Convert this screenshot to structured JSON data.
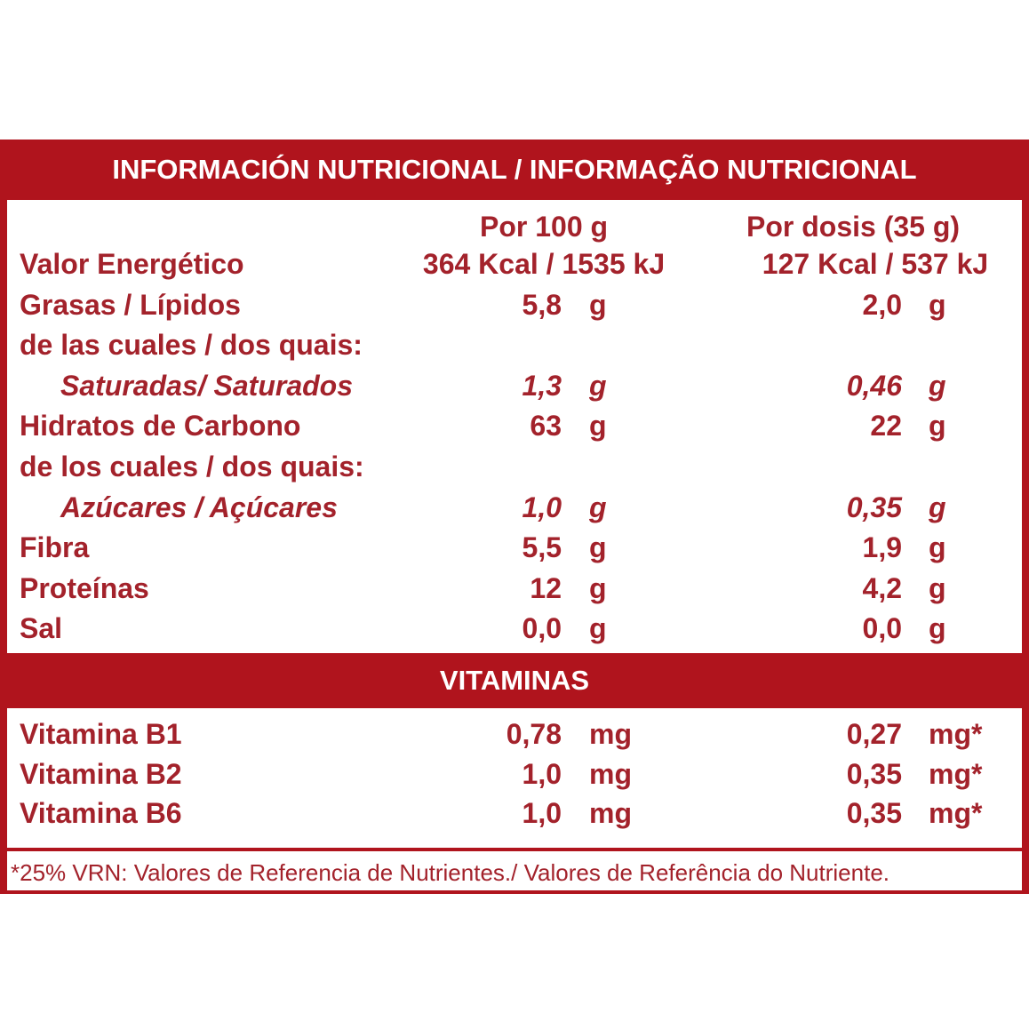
{
  "header": {
    "title": "INFORMACIÓN NUTRICIONAL / INFORMAÇÃO NUTRICIONAL"
  },
  "table": {
    "columns": [
      "Por 100 g",
      "Por dosis (35 g)"
    ],
    "rows": [
      {
        "label": "Valor Energético",
        "per_100g": {
          "amount": "364 Kcal / 1535 kJ"
        },
        "per_dose": {
          "amount": "127 Kcal / 537 kJ"
        }
      },
      {
        "label": "Grasas / Lípidos",
        "per_100g": {
          "amount": "5,8",
          "unit": "g"
        },
        "per_dose": {
          "amount": "2,0",
          "unit": "g"
        }
      },
      {
        "label": "de las cuales / dos quais:"
      },
      {
        "label": "Saturadas/ Saturados",
        "italic": true,
        "per_100g": {
          "amount": "1,3",
          "unit": "g"
        },
        "per_dose": {
          "amount": "0,46",
          "unit": "g"
        }
      },
      {
        "label": "Hidratos de Carbono",
        "per_100g": {
          "amount": "63",
          "unit": "g"
        },
        "per_dose": {
          "amount": "22",
          "unit": "g"
        }
      },
      {
        "label": "de los cuales / dos quais:"
      },
      {
        "label": "Azúcares / Açúcares",
        "italic": true,
        "per_100g": {
          "amount": "1,0",
          "unit": "g"
        },
        "per_dose": {
          "amount": "0,35",
          "unit": "g"
        }
      },
      {
        "label": "Fibra",
        "per_100g": {
          "amount": "5,5",
          "unit": "g"
        },
        "per_dose": {
          "amount": "1,9",
          "unit": "g"
        }
      },
      {
        "label": "Proteínas",
        "per_100g": {
          "amount": "12",
          "unit": "g"
        },
        "per_dose": {
          "amount": "4,2",
          "unit": "g"
        }
      },
      {
        "label": "Sal",
        "per_100g": {
          "amount": "0,0",
          "unit": "g"
        },
        "per_dose": {
          "amount": "0,0",
          "unit": "g"
        }
      }
    ]
  },
  "vitamins": {
    "title": "VITAMINAS",
    "rows": [
      {
        "label": "Vitamina B1",
        "per_100g": {
          "amount": "0,78",
          "unit": "mg"
        },
        "per_dose": {
          "amount": "0,27",
          "unit": "mg*"
        }
      },
      {
        "label": "Vitamina B2",
        "per_100g": {
          "amount": "1,0",
          "unit": "mg"
        },
        "per_dose": {
          "amount": "0,35",
          "unit": "mg*"
        }
      },
      {
        "label": "Vitamina B6",
        "per_100g": {
          "amount": "1,0",
          "unit": "mg"
        },
        "per_dose": {
          "amount": "0,35",
          "unit": "mg*"
        }
      }
    ]
  },
  "footnote": "*25% VRN: Valores de Referencia de Nutrientes./ Valores de Referência do Nutriente."
}
